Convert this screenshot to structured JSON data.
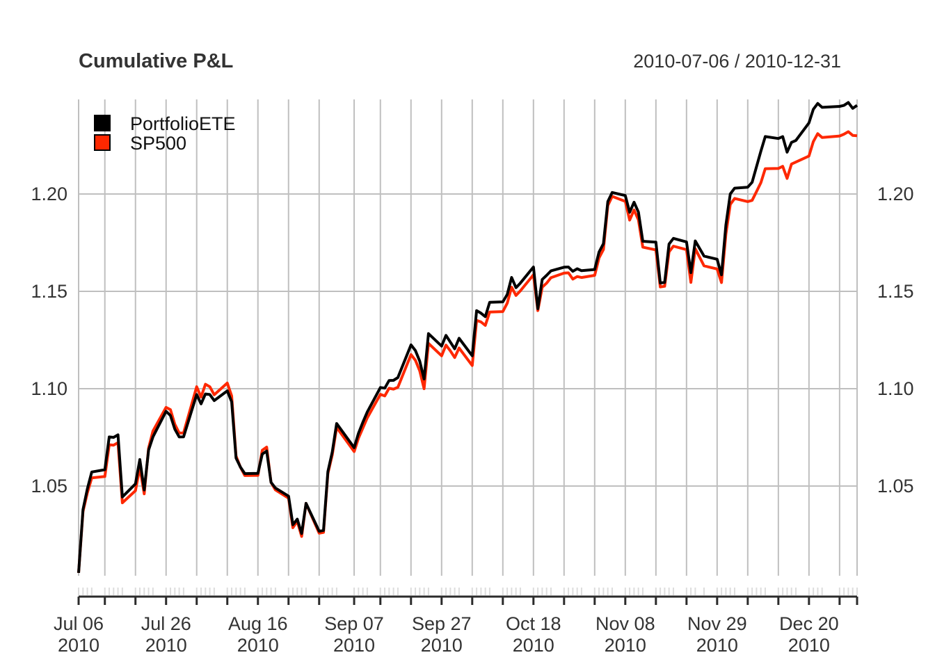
{
  "chart": {
    "title": "Cumulative P&L",
    "date_range": "2010-07-06 / 2010-12-31"
  },
  "legend": [
    {
      "label": "PortfolioETE",
      "color": "#000000"
    },
    {
      "label": "SP500",
      "color": "#fe2800"
    }
  ],
  "y_axis": {
    "ticks": [
      {
        "value": 1.05,
        "label": "1.05"
      },
      {
        "value": 1.1,
        "label": "1.10"
      },
      {
        "value": 1.15,
        "label": "1.15"
      },
      {
        "value": 1.2,
        "label": "1.20"
      }
    ]
  },
  "x_axis": {
    "labels": [
      {
        "line1": "Jul 06",
        "line2": "2010"
      },
      {
        "line1": "Jul 26",
        "line2": "2010"
      },
      {
        "line1": "Aug 16",
        "line2": "2010"
      },
      {
        "line1": "Sep 07",
        "line2": "2010"
      },
      {
        "line1": "Sep 27",
        "line2": "2010"
      },
      {
        "line1": "Oct 18",
        "line2": "2010"
      },
      {
        "line1": "Nov 08",
        "line2": "2010"
      },
      {
        "line1": "Nov 29",
        "line2": "2010"
      },
      {
        "line1": "Dec 20",
        "line2": "2010"
      }
    ]
  },
  "chart_data": {
    "type": "line",
    "title": "Cumulative P&L",
    "subtitle": "2010-07-06 / 2010-12-31",
    "xlabel": "",
    "ylabel": "",
    "ylim": [
      0.99,
      1.25
    ],
    "y_ticks": [
      1.05,
      1.1,
      1.15,
      1.2
    ],
    "grid": true,
    "legend_position": "top-left",
    "x": [
      "2010-07-06",
      "2010-07-07",
      "2010-07-08",
      "2010-07-09",
      "2010-07-12",
      "2010-07-13",
      "2010-07-14",
      "2010-07-15",
      "2010-07-16",
      "2010-07-19",
      "2010-07-20",
      "2010-07-21",
      "2010-07-22",
      "2010-07-23",
      "2010-07-26",
      "2010-07-27",
      "2010-07-28",
      "2010-07-29",
      "2010-07-30",
      "2010-08-02",
      "2010-08-03",
      "2010-08-04",
      "2010-08-05",
      "2010-08-06",
      "2010-08-09",
      "2010-08-10",
      "2010-08-11",
      "2010-08-12",
      "2010-08-13",
      "2010-08-16",
      "2010-08-17",
      "2010-08-18",
      "2010-08-19",
      "2010-08-20",
      "2010-08-23",
      "2010-08-24",
      "2010-08-25",
      "2010-08-26",
      "2010-08-27",
      "2010-08-30",
      "2010-08-31",
      "2010-09-01",
      "2010-09-02",
      "2010-09-03",
      "2010-09-07",
      "2010-09-08",
      "2010-09-09",
      "2010-09-10",
      "2010-09-13",
      "2010-09-14",
      "2010-09-15",
      "2010-09-16",
      "2010-09-17",
      "2010-09-20",
      "2010-09-21",
      "2010-09-22",
      "2010-09-23",
      "2010-09-24",
      "2010-09-27",
      "2010-09-28",
      "2010-09-29",
      "2010-09-30",
      "2010-10-01",
      "2010-10-04",
      "2010-10-05",
      "2010-10-06",
      "2010-10-07",
      "2010-10-08",
      "2010-10-11",
      "2010-10-12",
      "2010-10-13",
      "2010-10-14",
      "2010-10-15",
      "2010-10-18",
      "2010-10-19",
      "2010-10-20",
      "2010-10-21",
      "2010-10-22",
      "2010-10-25",
      "2010-10-26",
      "2010-10-27",
      "2010-10-28",
      "2010-10-29",
      "2010-11-01",
      "2010-11-02",
      "2010-11-03",
      "2010-11-04",
      "2010-11-05",
      "2010-11-08",
      "2010-11-09",
      "2010-11-10",
      "2010-11-11",
      "2010-11-12",
      "2010-11-15",
      "2010-11-16",
      "2010-11-17",
      "2010-11-18",
      "2010-11-19",
      "2010-11-22",
      "2010-11-23",
      "2010-11-24",
      "2010-11-26",
      "2010-11-29",
      "2010-11-30",
      "2010-12-01",
      "2010-12-02",
      "2010-12-03",
      "2010-12-06",
      "2010-12-07",
      "2010-12-08",
      "2010-12-09",
      "2010-12-10",
      "2010-12-13",
      "2010-12-14",
      "2010-12-15",
      "2010-12-16",
      "2010-12-17",
      "2010-12-20",
      "2010-12-21",
      "2010-12-22",
      "2010-12-23",
      "2010-12-27",
      "2010-12-28",
      "2010-12-29",
      "2010-12-30",
      "2010-12-31"
    ],
    "series": [
      {
        "name": "PortfolioETE",
        "color": "#000000",
        "values": [
          1.0054,
          1.0379,
          1.0486,
          1.0572,
          1.0584,
          1.0752,
          1.075,
          1.0763,
          1.0444,
          1.0511,
          1.0636,
          1.048,
          1.0685,
          1.0753,
          1.0884,
          1.0862,
          1.0792,
          1.0752,
          1.0753,
          1.097,
          1.0922,
          1.0973,
          1.097,
          1.0939,
          1.0989,
          1.0933,
          1.0644,
          1.0597,
          1.0564,
          1.0565,
          1.0664,
          1.068,
          1.0519,
          1.049,
          1.0448,
          1.0301,
          1.033,
          1.0256,
          1.0411,
          1.0268,
          1.0272,
          1.0574,
          1.0675,
          1.0821,
          1.0697,
          1.0771,
          1.0828,
          1.088,
          1.1006,
          1.1003,
          1.1042,
          1.1043,
          1.1057,
          1.1225,
          1.1196,
          1.1142,
          1.105,
          1.1283,
          1.1219,
          1.1274,
          1.1239,
          1.1205,
          1.1259,
          1.1169,
          1.1401,
          1.1388,
          1.137,
          1.1444,
          1.1446,
          1.1484,
          1.1571,
          1.1519,
          1.1542,
          1.1625,
          1.1411,
          1.1561,
          1.1582,
          1.1605,
          1.1624,
          1.1625,
          1.1603,
          1.1616,
          1.1606,
          1.1612,
          1.1702,
          1.1745,
          1.1961,
          1.2008,
          1.1992,
          1.1906,
          1.1958,
          1.1907,
          1.1757,
          1.1753,
          1.1543,
          1.1546,
          1.1743,
          1.1772,
          1.1754,
          1.1596,
          1.1759,
          1.1681,
          1.1665,
          1.1585,
          1.184,
          1.2,
          1.203,
          1.2035,
          1.206,
          1.214,
          1.222,
          1.2295,
          1.2285,
          1.2295,
          1.2215,
          1.2265,
          1.2275,
          1.2365,
          1.2435,
          1.2465,
          1.2445,
          1.245,
          1.2455,
          1.247,
          1.244,
          1.2455
        ]
      },
      {
        "name": "SP500",
        "color": "#fe2800",
        "values": [
          1.0054,
          1.0369,
          1.0466,
          1.0542,
          1.0549,
          1.0712,
          1.071,
          1.0723,
          1.0414,
          1.0476,
          1.0596,
          1.046,
          1.0695,
          1.0783,
          1.0904,
          1.0892,
          1.0817,
          1.0772,
          1.0773,
          1.101,
          1.0957,
          1.1023,
          1.101,
          1.0969,
          1.1029,
          1.0963,
          1.0654,
          1.0597,
          1.0554,
          1.0555,
          1.0684,
          1.07,
          1.0519,
          1.048,
          1.0438,
          1.0286,
          1.032,
          1.0241,
          1.0411,
          1.0258,
          1.0262,
          1.0564,
          1.066,
          1.0801,
          1.0677,
          1.0746,
          1.0798,
          1.085,
          1.0971,
          1.0963,
          1.1002,
          1.0998,
          1.1007,
          1.1175,
          1.1146,
          1.1092,
          1.1,
          1.1233,
          1.1169,
          1.1224,
          1.1194,
          1.116,
          1.1209,
          1.1119,
          1.1351,
          1.1343,
          1.1325,
          1.1394,
          1.1396,
          1.1439,
          1.1521,
          1.1479,
          1.1502,
          1.1585,
          1.1401,
          1.1521,
          1.1542,
          1.157,
          1.1594,
          1.1595,
          1.1563,
          1.1576,
          1.1571,
          1.1582,
          1.1672,
          1.1715,
          1.1941,
          1.1988,
          1.1962,
          1.1866,
          1.1918,
          1.1867,
          1.1727,
          1.1713,
          1.1523,
          1.1526,
          1.1703,
          1.1732,
          1.1714,
          1.1546,
          1.1719,
          1.1631,
          1.1615,
          1.1545,
          1.1794,
          1.1946,
          1.1977,
          1.1961,
          1.1967,
          1.2012,
          1.2058,
          1.213,
          1.2131,
          1.2142,
          1.208,
          1.2154,
          1.2164,
          1.2195,
          1.2269,
          1.231,
          1.229,
          1.2298,
          1.2307,
          1.232,
          1.2301,
          1.2299
        ]
      }
    ]
  }
}
